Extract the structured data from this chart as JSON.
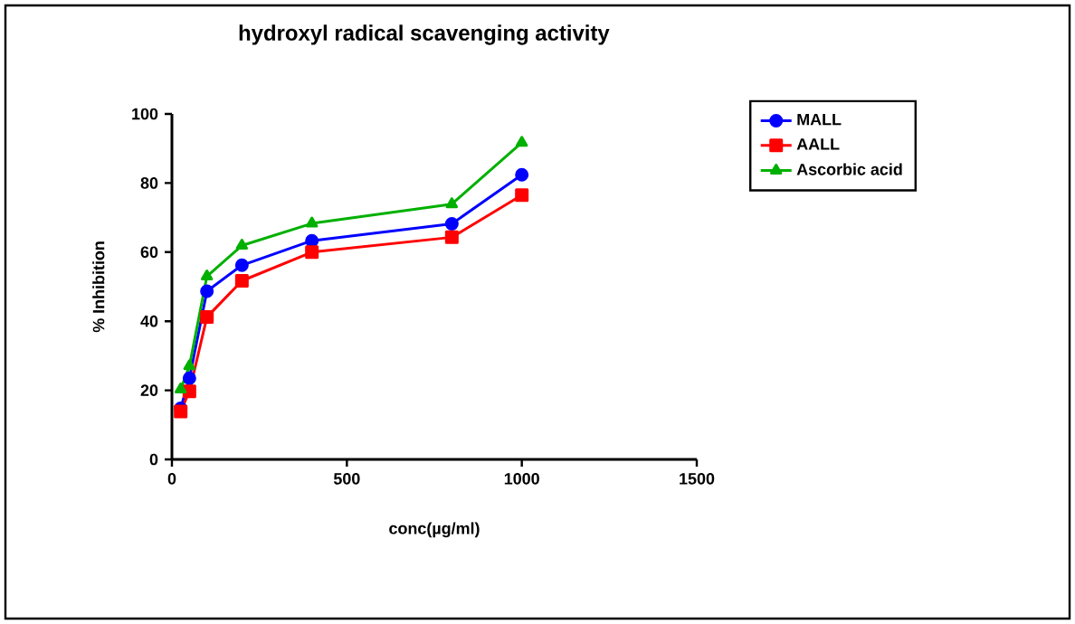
{
  "chart_data": {
    "type": "line",
    "title": "hydroxyl radical scavenging activity",
    "xlabel": "conc(µg/ml)",
    "ylabel": "% Inhibition",
    "x": [
      25,
      50,
      100,
      200,
      400,
      800,
      1000
    ],
    "series": [
      {
        "name": "MALL",
        "color": "#0000ff",
        "marker": "circle",
        "values": [
          14.8,
          23.5,
          48.7,
          56.2,
          63.3,
          68.2,
          82.4
        ]
      },
      {
        "name": "AALL",
        "color": "#ff0000",
        "marker": "square",
        "values": [
          13.9,
          19.7,
          41.2,
          51.7,
          60,
          64.3,
          76.5
        ]
      },
      {
        "name": "Ascorbic acid",
        "color": "#00b000",
        "marker": "triangle",
        "values": [
          20.3,
          27,
          53,
          61.9,
          68.3,
          73.9,
          91.7
        ]
      }
    ],
    "xlim": [
      0,
      1500
    ],
    "xticks": [
      0,
      500,
      1000,
      1500
    ],
    "ylim": [
      0,
      100
    ],
    "yticks": [
      0,
      20,
      40,
      60,
      80,
      100
    ],
    "grid": false,
    "legend": "top right"
  }
}
